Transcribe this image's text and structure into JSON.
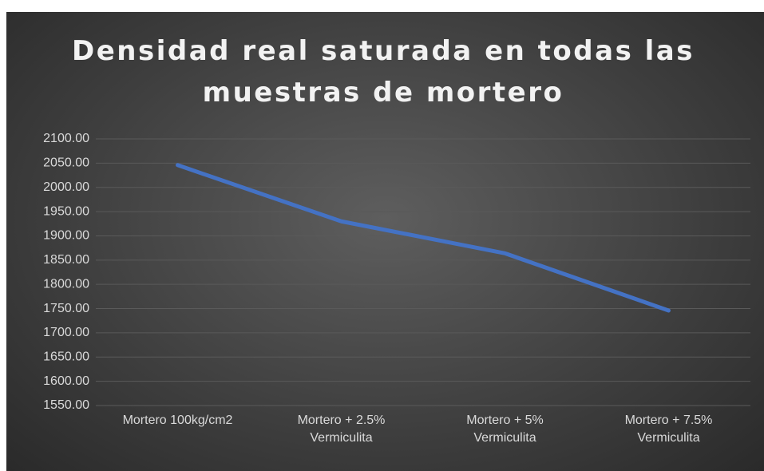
{
  "chart_data": {
    "type": "line",
    "title": "Densidad real saturada en todas las muestras de mortero",
    "categories": [
      "Mortero 100kg/cm2",
      "Mortero + 2.5% Vermiculita",
      "Mortero + 5% Vermiculita",
      "Mortero + 7.5% Vermiculita"
    ],
    "series": [
      {
        "name": "Densidad real saturada",
        "color": "#4472c4",
        "values": [
          2046,
          1930,
          1864,
          1746
        ]
      }
    ],
    "ylim": [
      1550,
      2100
    ],
    "yticks": [
      {
        "value": 1550,
        "label": "1550.00"
      },
      {
        "value": 1600,
        "label": "1600.00"
      },
      {
        "value": 1650,
        "label": "1650.00"
      },
      {
        "value": 1700,
        "label": "1700.00"
      },
      {
        "value": 1750,
        "label": "1750.00"
      },
      {
        "value": 1800,
        "label": "1800.00"
      },
      {
        "value": 1850,
        "label": "1850.00"
      },
      {
        "value": 1900,
        "label": "1900.00"
      },
      {
        "value": 1950,
        "label": "1950.00"
      },
      {
        "value": 2000,
        "label": "2000.00"
      },
      {
        "value": 2050,
        "label": "2050.00"
      },
      {
        "value": 2100,
        "label": "2100.00"
      }
    ],
    "grid": true
  }
}
